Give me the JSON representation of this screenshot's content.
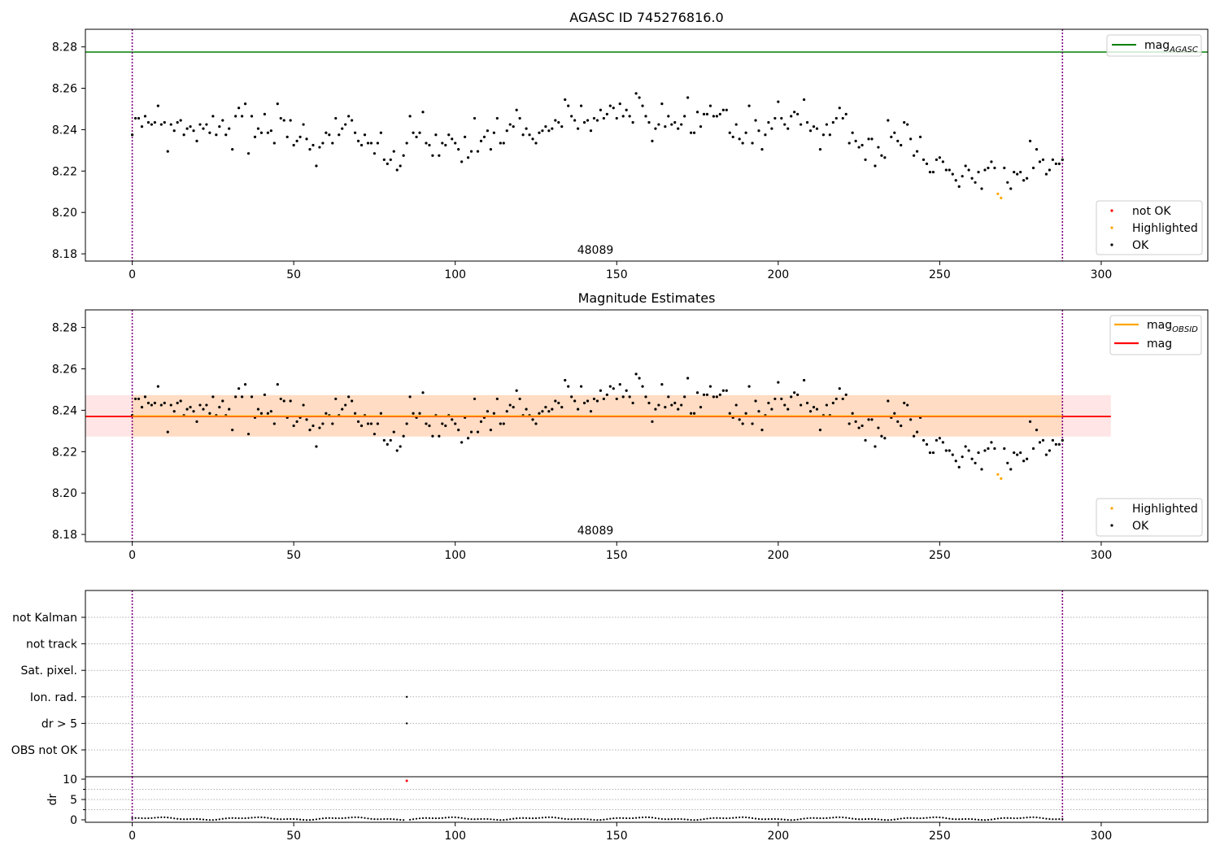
{
  "chart_data": [
    {
      "type": "scatter",
      "title": "AGASC ID 745276816.0",
      "xlabel": "",
      "ylabel": "",
      "xlim": [
        -14.5,
        333
      ],
      "ylim": [
        8.1765,
        8.2885
      ],
      "xticks": [
        0,
        50,
        100,
        150,
        200,
        250,
        300
      ],
      "yticks": [
        8.18,
        8.2,
        8.22,
        8.24,
        8.26,
        8.28
      ],
      "ytick_labels": [
        "8.18",
        "8.20",
        "8.22",
        "8.24",
        "8.26",
        "8.28"
      ],
      "annotation": "48089",
      "annotation_x": 144,
      "vlines": [
        0,
        288
      ],
      "mag_agasc": 8.2775,
      "legend_top": [
        {
          "label": "mag",
          "sub": "AGASC",
          "color": "#008000",
          "kind": "line"
        }
      ],
      "legend_bottom": [
        {
          "label": "not OK",
          "color": "#ff0000",
          "kind": "point"
        },
        {
          "label": "Highlighted",
          "color": "#ffa500",
          "kind": "point"
        },
        {
          "label": "OK",
          "color": "#000000",
          "kind": "point"
        }
      ],
      "series": [
        {
          "name": "OK",
          "color": "#000000",
          "source": "mag_values"
        },
        {
          "name": "Highlighted",
          "color": "#ffa500",
          "points": [
            [
              268,
              8.209
            ],
            [
              269,
              8.207
            ]
          ]
        }
      ]
    },
    {
      "type": "scatter",
      "title": "Magnitude Estimates",
      "xlim": [
        -14.5,
        333
      ],
      "ylim": [
        8.1765,
        8.2885
      ],
      "xticks": [
        0,
        50,
        100,
        150,
        200,
        250,
        300
      ],
      "yticks": [
        8.18,
        8.2,
        8.22,
        8.24,
        8.26,
        8.28
      ],
      "ytick_labels": [
        "8.18",
        "8.20",
        "8.22",
        "8.24",
        "8.26",
        "8.28"
      ],
      "annotation": "48089",
      "annotation_x": 144,
      "vlines": [
        0,
        288
      ],
      "mag": 8.237,
      "mag_obsid": 8.2372,
      "band": [
        8.2273,
        8.2473
      ],
      "band_x": [
        -14.5,
        303
      ],
      "legend_top": [
        {
          "label": "mag",
          "sub": "OBSID",
          "color": "#ffa500",
          "kind": "line"
        },
        {
          "label": "mag",
          "sub": "",
          "color": "#ff0000",
          "kind": "line"
        }
      ],
      "legend_bottom": [
        {
          "label": "Highlighted",
          "color": "#ffa500",
          "kind": "point"
        },
        {
          "label": "OK",
          "color": "#000000",
          "kind": "point"
        }
      ],
      "series": [
        {
          "name": "OK",
          "color": "#000000",
          "source": "mag_values"
        },
        {
          "name": "Highlighted",
          "color": "#ffa500",
          "points": [
            [
              268,
              8.209
            ],
            [
              269,
              8.207
            ]
          ]
        }
      ]
    },
    {
      "type": "scatter",
      "title": "",
      "xlim": [
        -14.5,
        333
      ],
      "flag_labels": [
        "not Kalman",
        "not track",
        "Sat. pixel.",
        "Ion. rad.",
        "dr > 5",
        "OBS not OK"
      ],
      "flag_points": [
        {
          "flag": "Ion. rad.",
          "x": 85
        },
        {
          "flag": "dr > 5",
          "x": 85
        }
      ],
      "vlines": [
        0,
        288
      ]
    },
    {
      "type": "scatter",
      "title": "",
      "xlabel": "",
      "ylabel": "dr",
      "xlim": [
        -14.5,
        333
      ],
      "ylim": [
        -0.6,
        10.6
      ],
      "xticks": [
        0,
        50,
        100,
        150,
        200,
        250,
        300
      ],
      "yticks": [
        0,
        5,
        10
      ],
      "ytick_labels": [
        "0",
        "5",
        "10"
      ],
      "vlines": [
        0,
        288
      ],
      "outlier": {
        "x": 85,
        "y": 9.6,
        "color": "#ff0000"
      },
      "dr_baseline": 0.3,
      "dr_values_x_range": [
        0,
        288
      ]
    }
  ],
  "mag_values": [
    8.2375,
    8.2455,
    8.2455,
    8.2415,
    8.2465,
    8.2435,
    8.2425,
    8.2435,
    8.2515,
    8.2425,
    8.2435,
    8.2295,
    8.2425,
    8.2395,
    8.2435,
    8.2445,
    8.2375,
    8.2405,
    8.2415,
    8.2395,
    8.2345,
    8.2425,
    8.2405,
    8.2425,
    8.2385,
    8.2465,
    8.2375,
    8.2415,
    8.2445,
    8.2375,
    8.2405,
    8.2305,
    8.2465,
    8.2505,
    8.2465,
    8.2525,
    8.2285,
    8.2465,
    8.2365,
    8.2405,
    8.2385,
    8.2475,
    8.2385,
    8.2395,
    8.2335,
    8.2525,
    8.2455,
    8.2445,
    8.2365,
    8.2445,
    8.2325,
    8.2345,
    8.2365,
    8.2425,
    8.2355,
    8.2305,
    8.2325,
    8.2225,
    8.2315,
    8.2335,
    8.2385,
    8.2375,
    8.2335,
    8.2455,
    8.2375,
    8.2405,
    8.2425,
    8.2465,
    8.2445,
    8.2385,
    8.2345,
    8.2325,
    8.2375,
    8.2335,
    8.2335,
    8.2285,
    8.2335,
    8.2385,
    8.2255,
    8.2235,
    8.2255,
    8.2295,
    8.2205,
    8.2225,
    8.2275,
    8.2335,
    8.2465,
    8.2385,
    8.2365,
    8.2385,
    8.2485,
    8.2335,
    8.2325,
    8.2275,
    8.2375,
    8.2275,
    8.2335,
    8.2325,
    8.2375,
    8.2355,
    8.2335,
    8.2305,
    8.2245,
    8.2365,
    8.2265,
    8.2295,
    8.2455,
    8.2295,
    8.2345,
    8.2365,
    8.2395,
    8.2305,
    8.2385,
    8.2455,
    8.2335,
    8.2335,
    8.2395,
    8.2425,
    8.2415,
    8.2495,
    8.2455,
    8.2375,
    8.2405,
    8.2375,
    8.2355,
    8.2335,
    8.2385,
    8.2395,
    8.2415,
    8.2395,
    8.2405,
    8.2445,
    8.2435,
    8.2415,
    8.2545,
    8.2515,
    8.2465,
    8.2445,
    8.2405,
    8.2515,
    8.2435,
    8.2445,
    8.2395,
    8.2455,
    8.2445,
    8.2495,
    8.2455,
    8.2475,
    8.2515,
    8.2505,
    8.2455,
    8.2525,
    8.2465,
    8.2495,
    8.2465,
    8.2435,
    8.2575,
    8.2555,
    8.2515,
    8.2465,
    8.2435,
    8.2345,
    8.2405,
    8.2425,
    8.2525,
    8.2415,
    8.2465,
    8.2425,
    8.2435,
    8.2405,
    8.2425,
    8.2465,
    8.2555,
    8.2385,
    8.2385,
    8.2485,
    8.2415,
    8.2475,
    8.2475,
    8.2515,
    8.2465,
    8.2465,
    8.2475,
    8.2495,
    8.2495,
    8.2385,
    8.2365,
    8.2425,
    8.2355,
    8.2335,
    8.2385,
    8.2515,
    8.2335,
    8.2445,
    8.2395,
    8.2305,
    8.2375,
    8.2435,
    8.2405,
    8.2455,
    8.2535,
    8.2455,
    8.2425,
    8.2405,
    8.2465,
    8.2485,
    8.2475,
    8.2425,
    8.2545,
    8.2435,
    8.2395,
    8.2415,
    8.2405,
    8.2305,
    8.2375,
    8.2425,
    8.2375,
    8.2435,
    8.2455,
    8.2505,
    8.2455,
    8.2475,
    8.2335,
    8.2385,
    8.2345,
    8.2315,
    8.2325,
    8.2255,
    8.2355,
    8.2355,
    8.2225,
    8.2315,
    8.2275,
    8.2265,
    8.2445,
    8.2365,
    8.2385,
    8.2345,
    8.2325,
    8.2435,
    8.2425,
    8.2355,
    8.2275,
    8.2295,
    8.2365,
    8.2255,
    8.2235,
    8.2195,
    8.2195,
    8.2255,
    8.2265,
    8.2245,
    8.2205,
    8.2205,
    8.2185,
    8.2155,
    8.2125,
    8.2175,
    8.2225,
    8.2205,
    8.2165,
    8.2145,
    8.2195,
    8.2115,
    8.2205,
    8.2215,
    8.2245,
    8.2215,
    8.2095,
    8.2065,
    8.2215,
    8.2145,
    8.2115,
    8.2195,
    8.2185,
    8.2195,
    8.2155,
    8.2165,
    8.2345,
    8.2215,
    8.2305,
    8.2245,
    8.2255,
    8.2185,
    8.2205,
    8.2255,
    8.2235,
    8.2235,
    8.2255
  ],
  "highlight_indices": [
    268,
    269
  ]
}
